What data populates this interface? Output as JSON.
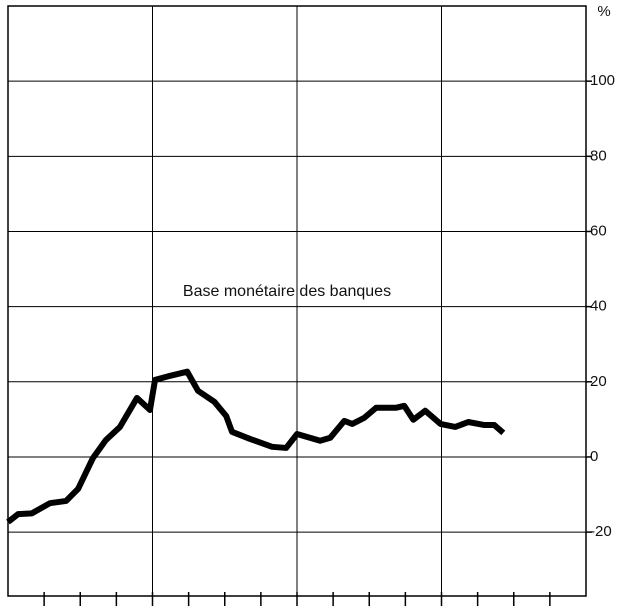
{
  "chart_data": {
    "type": "line",
    "ylabel": "%",
    "annotation": "Base monétaire des banques",
    "xlim": [
      0,
      16
    ],
    "xticks": [
      1,
      2,
      3,
      4,
      5,
      6,
      7,
      8,
      9,
      10,
      11,
      12,
      13,
      14,
      15
    ],
    "xgrid": [
      4,
      8,
      12
    ],
    "ylim": [
      -37,
      120
    ],
    "yticks": [
      -20,
      0,
      20,
      40,
      60,
      80,
      100
    ],
    "grid": true,
    "series": [
      {
        "name": "Base monétaire des banques",
        "color": "#000000",
        "x": [
          0,
          0.28,
          0.66,
          1.16,
          1.61,
          1.94,
          2.35,
          2.71,
          3.1,
          3.57,
          3.93,
          4.07,
          4.49,
          4.96,
          5.26,
          5.71,
          6.04,
          6.2,
          6.7,
          7.31,
          7.7,
          8.0,
          8.64,
          8.92,
          9.31,
          9.53,
          9.86,
          10.19,
          10.75,
          10.97,
          11.22,
          11.55,
          11.97,
          12.38,
          12.74,
          13.19,
          13.46,
          13.71
        ],
        "values": [
          -17.3,
          -15.2,
          -15,
          -12.3,
          -11.7,
          -8.5,
          -0.3,
          4.5,
          8,
          15.7,
          12.5,
          20.5,
          21.6,
          22.7,
          17.6,
          14.7,
          10.9,
          6.7,
          4.8,
          2.7,
          2.4,
          6.1,
          4.3,
          5.1,
          9.6,
          8.8,
          10.4,
          13.1,
          13.1,
          13.6,
          9.9,
          12.3,
          8.8,
          8,
          9.3,
          8.5,
          8.5,
          6.4
        ]
      }
    ]
  }
}
